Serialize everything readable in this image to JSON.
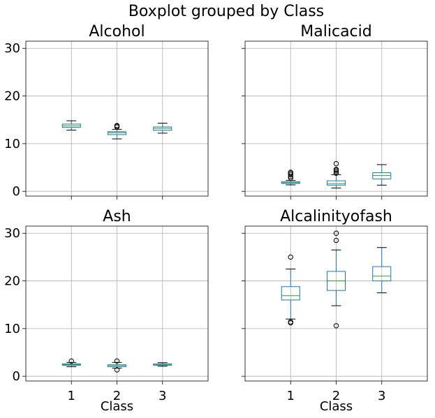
{
  "chart_data": {
    "type": "boxplot",
    "suptitle": "Boxplot grouped by Class",
    "xlabel": "Class",
    "categories": [
      "1",
      "2",
      "3"
    ],
    "ylim": [
      -1,
      31.5
    ],
    "yticks": [
      0,
      10,
      20,
      30
    ],
    "grid": true,
    "colors": {
      "box": "#1f77b4",
      "median": "#2ca02c",
      "whisker": "#000000",
      "outlier": "#000000",
      "grid": "#b0b0b0"
    },
    "panels": [
      {
        "title": "Alcohol",
        "groups": [
          {
            "category": "1",
            "whislo": 12.85,
            "q1": 13.4,
            "med": 13.75,
            "q3": 14.1,
            "whishi": 14.8,
            "fliers": []
          },
          {
            "category": "2",
            "whislo": 11.0,
            "q1": 11.9,
            "med": 12.3,
            "q3": 12.5,
            "whishi": 13.0,
            "fliers": [
              13.5,
              13.7,
              13.8
            ]
          },
          {
            "category": "3",
            "whislo": 12.2,
            "q1": 12.8,
            "med": 13.2,
            "q3": 13.5,
            "whishi": 14.3,
            "fliers": []
          }
        ]
      },
      {
        "title": "Malicacid",
        "groups": [
          {
            "category": "1",
            "whislo": 1.35,
            "q1": 1.65,
            "med": 1.8,
            "q3": 2.0,
            "whishi": 2.3,
            "fliers": [
              2.8,
              3.1,
              3.5,
              3.8,
              4.0
            ]
          },
          {
            "category": "2",
            "whislo": 0.7,
            "q1": 1.3,
            "med": 1.6,
            "q3": 2.2,
            "whishi": 3.5,
            "fliers": [
              3.8,
              4.1,
              4.4,
              4.6,
              5.8
            ]
          },
          {
            "category": "3",
            "whislo": 1.3,
            "q1": 2.6,
            "med": 3.3,
            "q3": 3.9,
            "whishi": 5.6,
            "fliers": []
          }
        ]
      },
      {
        "title": "Ash",
        "groups": [
          {
            "category": "1",
            "whislo": 2.0,
            "q1": 2.3,
            "med": 2.45,
            "q3": 2.6,
            "whishi": 2.9,
            "fliers": [
              3.2
            ]
          },
          {
            "category": "2",
            "whislo": 1.7,
            "q1": 2.0,
            "med": 2.25,
            "q3": 2.4,
            "whishi": 2.9,
            "fliers": [
              1.35,
              3.2
            ]
          },
          {
            "category": "3",
            "whislo": 2.1,
            "q1": 2.3,
            "med": 2.4,
            "q3": 2.6,
            "whishi": 2.85,
            "fliers": []
          }
        ]
      },
      {
        "title": "Alcalinityofash",
        "groups": [
          {
            "category": "1",
            "whislo": 12.0,
            "q1": 16.0,
            "med": 16.9,
            "q3": 18.8,
            "whishi": 22.5,
            "fliers": [
              11.2,
              11.4,
              25.0
            ]
          },
          {
            "category": "2",
            "whislo": 14.8,
            "q1": 18.0,
            "med": 20.0,
            "q3": 22.0,
            "whishi": 26.5,
            "fliers": [
              10.6,
              28.5,
              30.0
            ]
          },
          {
            "category": "3",
            "whislo": 17.5,
            "q1": 20.0,
            "med": 21.0,
            "q3": 23.0,
            "whishi": 27.0,
            "fliers": []
          }
        ]
      }
    ]
  }
}
